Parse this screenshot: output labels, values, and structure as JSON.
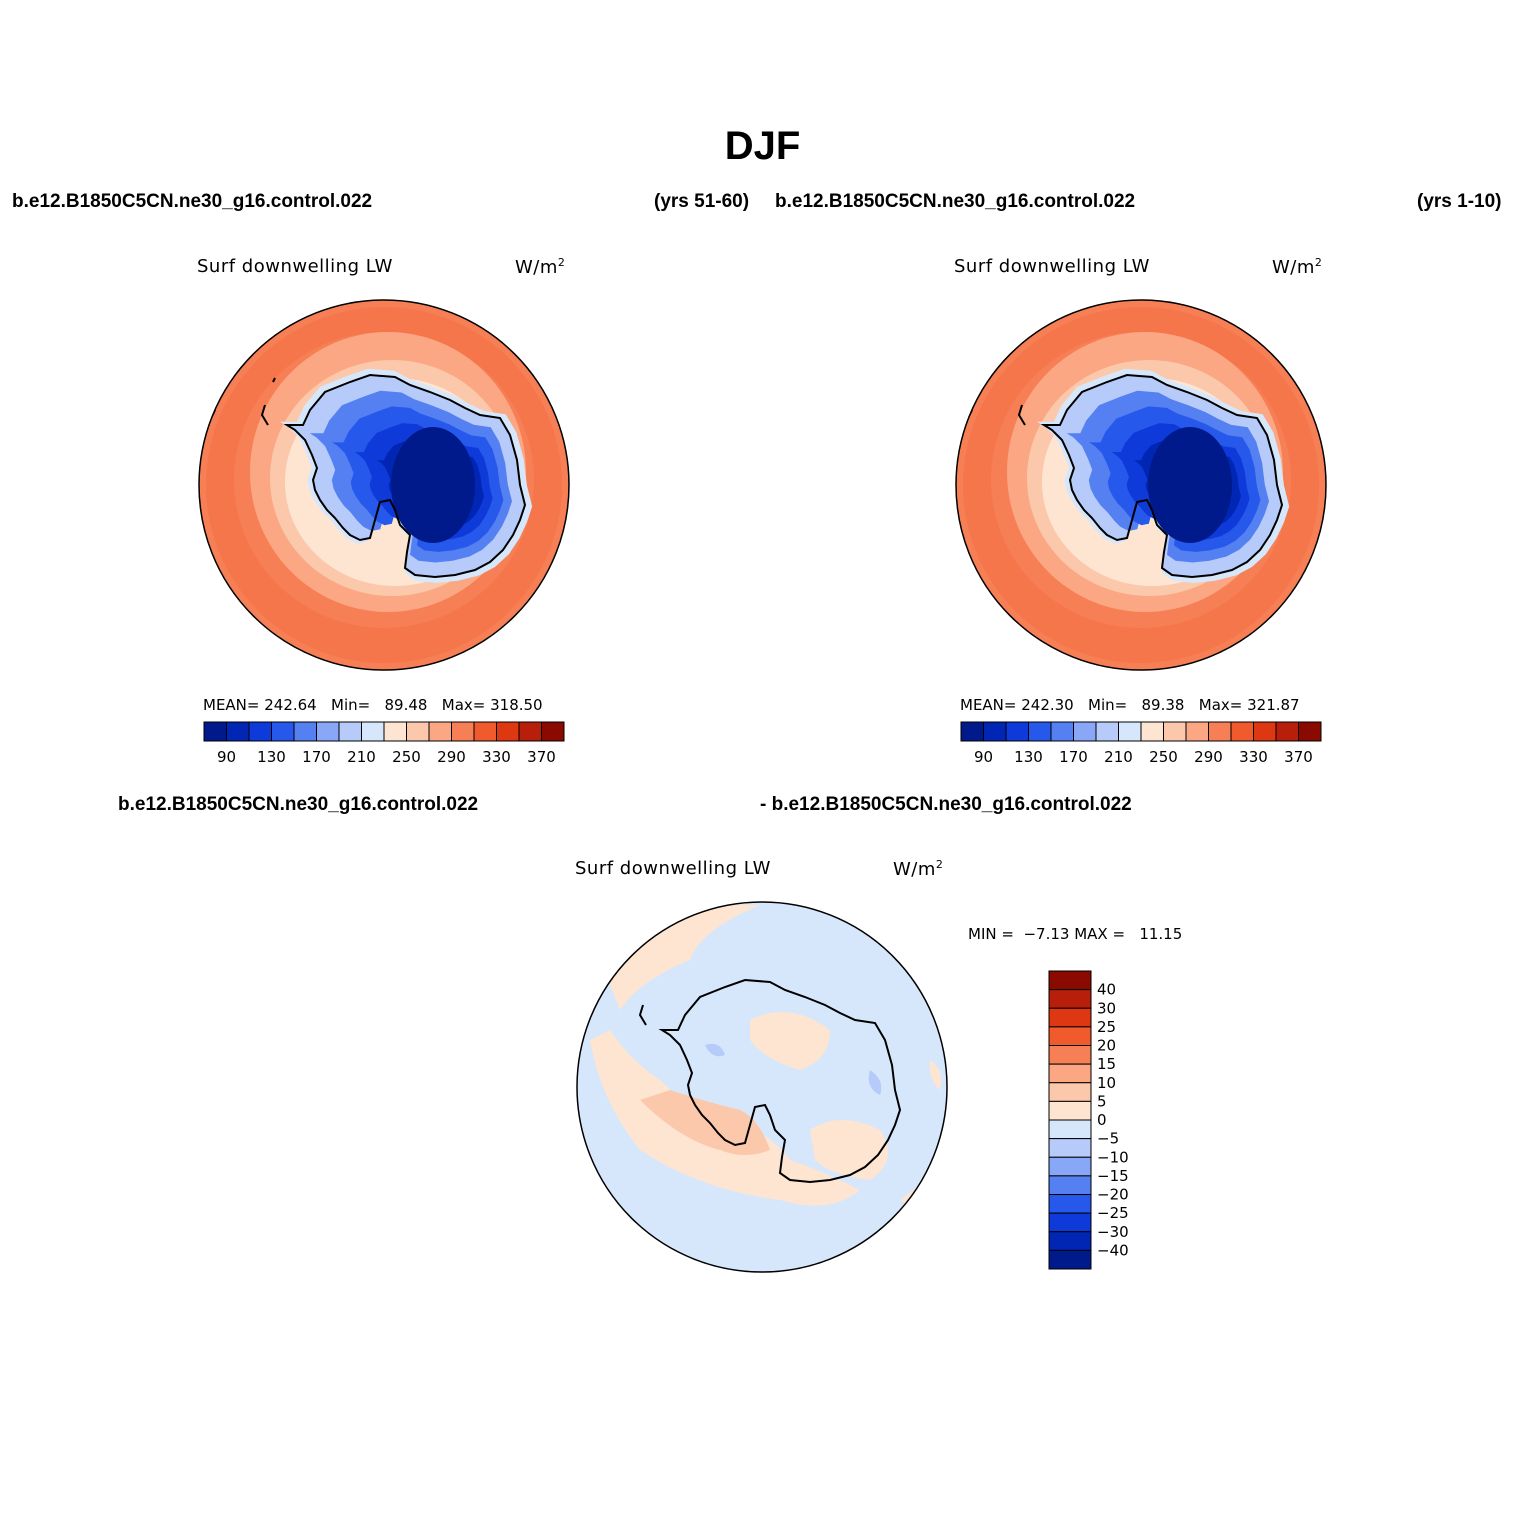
{
  "title": "DJF",
  "panels": [
    {
      "case_left": "b.e12.B1850C5CN.ne30_g16.control.022",
      "case_right": "(yrs 51-60)",
      "variable": "Surf downwelling LW",
      "units": "W/m",
      "units_exp": "2",
      "stats": "MEAN= 242.64   Min=   89.48   Max= 318.50"
    },
    {
      "case_left": "b.e12.B1850C5CN.ne30_g16.control.022",
      "case_right": "(yrs 1-10)",
      "variable": "Surf downwelling LW",
      "units": "W/m",
      "units_exp": "2",
      "stats": "MEAN= 242.30   Min=   89.38   Max= 321.87"
    },
    {
      "case_left": "b.e12.B1850C5CN.ne30_g16.control.022",
      "case_right": "- b.e12.B1850C5CN.ne30_g16.control.022",
      "variable": "Surf downwelling LW",
      "units": "W/m",
      "units_exp": "2",
      "stats": "MIN =  −7.13 MAX =   11.15"
    }
  ],
  "colorbar_abs": {
    "colors": [
      "#001a8c",
      "#0026b3",
      "#0d3ad9",
      "#2658eb",
      "#5580f2",
      "#88a8f7",
      "#b6cbfa",
      "#d6e7fb",
      "#fde5d2",
      "#fcc8ab",
      "#fba783",
      "#f77f55",
      "#f15a2c",
      "#dd3812",
      "#b81f0b",
      "#8b0a00"
    ],
    "labels": [
      "90",
      "130",
      "170",
      "210",
      "250",
      "290",
      "330",
      "370"
    ]
  },
  "colorbar_diff": {
    "colors": [
      "#001a8c",
      "#0026b3",
      "#0d3ad9",
      "#2658eb",
      "#5580f2",
      "#88a8f7",
      "#b6cbfa",
      "#d6e7fb",
      "#fde5d2",
      "#fcc8ab",
      "#fba783",
      "#f77f55",
      "#f15a2c",
      "#dd3812",
      "#b81f0b",
      "#8b0a00"
    ],
    "labels": [
      "40",
      "30",
      "25",
      "20",
      "15",
      "10",
      "5",
      "0",
      "−5",
      "−10",
      "−15",
      "−20",
      "−25",
      "−30",
      "−40"
    ]
  },
  "colors": {
    "ocean_warm": "#f77f55",
    "ice_core": "#001a8c",
    "diff_neg": "#d6e7fb",
    "diff_pos": "#fde5d2"
  }
}
